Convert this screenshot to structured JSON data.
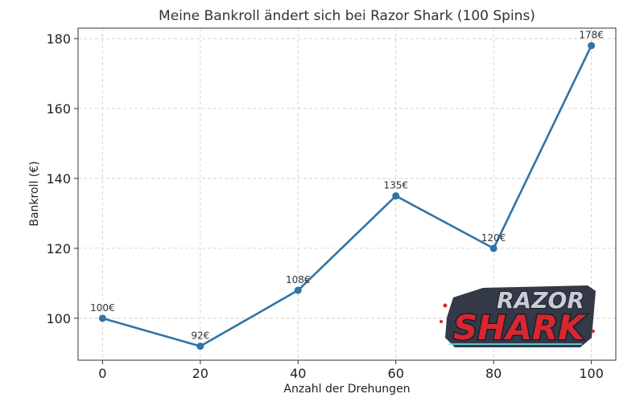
{
  "colors": {
    "line": "#2e75a8",
    "logo_red": "#d8272f",
    "logo_silver": "#c9cdd3",
    "logo_outline": "#1a1f2e",
    "logo_glow": "#6ee7f5"
  },
  "logo": {
    "line1": "RAZOR",
    "line2": "SHARK"
  },
  "chart_data": {
    "type": "line",
    "title": "Meine Bankroll ändert sich bei Razor Shark (100 Spins)",
    "xlabel": "Anzahl der Drehungen",
    "ylabel": "Bankroll (€)",
    "x": [
      0,
      20,
      40,
      60,
      80,
      100
    ],
    "series": [
      {
        "values": [
          100,
          92,
          108,
          135,
          120,
          178
        ],
        "labels": [
          "100€",
          "92€",
          "108€",
          "135€",
          "120€",
          "178€"
        ]
      }
    ],
    "xticks": [
      0,
      20,
      40,
      60,
      80,
      100
    ],
    "yticks": [
      100,
      120,
      140,
      160,
      180
    ],
    "xlim": [
      -5,
      105
    ],
    "ylim": [
      88,
      183
    ],
    "grid": true,
    "legend": "none"
  }
}
